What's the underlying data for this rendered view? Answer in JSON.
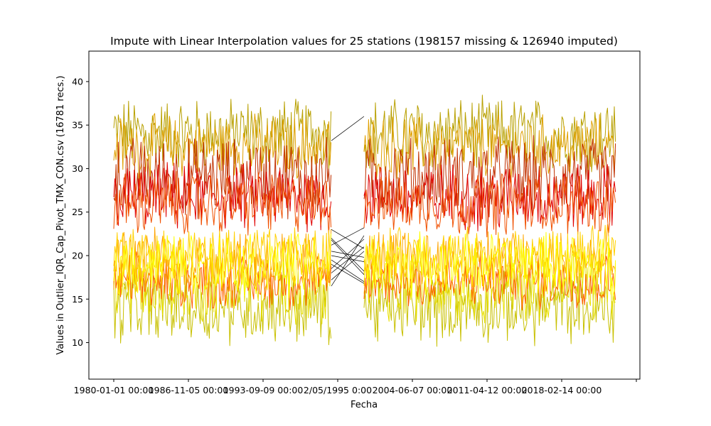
{
  "chart_data": {
    "type": "line",
    "title": "Impute with Linear Interpolation values for 25 stations (198157 missing & 126940 imputed)",
    "xlabel": "Fecha",
    "ylabel": "Values in Outlier_IQR_Cap_Pivot_TMX_CON.csv (16781 recs.)",
    "x_tick_labels": [
      "1980-01-01 00:00",
      "1986-11-05 00:00",
      "1993-09-09 00:00",
      "2/05/1995 0:00",
      "2004-06-07 00:00",
      "2011-04-12 00:00",
      "2018-02-14 00:00"
    ],
    "y_ticks": [
      10,
      15,
      20,
      25,
      30,
      35,
      40
    ],
    "ylim": [
      5.8,
      43.5
    ],
    "grid": false,
    "legend": "none",
    "data_gap": [
      "1995-09",
      "1999-08"
    ],
    "series_count": 25,
    "bands": [
      {
        "color": "#b8a000",
        "low": 30.5,
        "high": 37.5
      },
      {
        "color": "#e0a000",
        "low": 29.5,
        "high": 35.5
      },
      {
        "color": "#c03000",
        "low": 25.0,
        "high": 33.0
      },
      {
        "color": "#e00000",
        "low": 23.5,
        "high": 30.0
      },
      {
        "color": "#f05000",
        "low": 23.0,
        "high": 29.0
      },
      {
        "color": "#c8c000",
        "low": 10.5,
        "high": 17.5
      },
      {
        "color": "#e8e000",
        "low": 13.0,
        "high": 20.0
      },
      {
        "color": "#ff6000",
        "low": 14.5,
        "high": 19.5
      },
      {
        "color": "#ffa500",
        "low": 16.5,
        "high": 22.5
      },
      {
        "color": "#ffd000",
        "low": 17.5,
        "high": 22.5
      },
      {
        "color": "#ffff00",
        "low": 16.0,
        "high": 22.0
      }
    ]
  }
}
